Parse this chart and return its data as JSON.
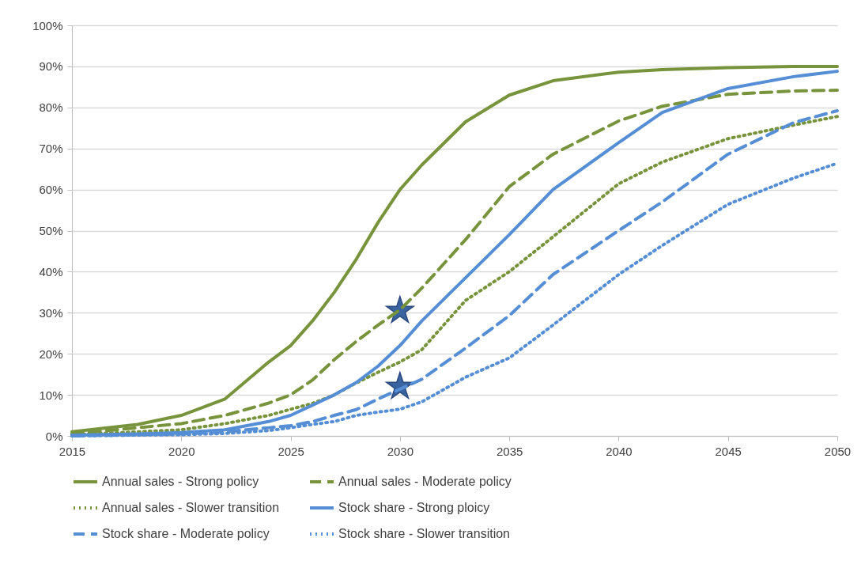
{
  "chart_data": {
    "type": "line",
    "grid": "y",
    "legend": "bottom",
    "xlim": [
      2015,
      2050
    ],
    "xticks": [
      2015,
      2020,
      2025,
      2030,
      2035,
      2040,
      2045,
      2050
    ],
    "ylim": [
      0,
      100
    ],
    "yticks": [
      {
        "value": 0,
        "label": "0%"
      },
      {
        "value": 10,
        "label": "10%"
      },
      {
        "value": 20,
        "label": "20%"
      },
      {
        "value": 30,
        "label": "30%"
      },
      {
        "value": 40,
        "label": "40%"
      },
      {
        "value": 50,
        "label": "50%"
      },
      {
        "value": 60,
        "label": "60%"
      },
      {
        "value": 70,
        "label": "70%"
      },
      {
        "value": 80,
        "label": "80%"
      },
      {
        "value": 90,
        "label": "90%"
      },
      {
        "value": 100,
        "label": "100%"
      }
    ],
    "x": [
      2015,
      2018,
      2020,
      2022,
      2024,
      2025,
      2026,
      2027,
      2028,
      2029,
      2030,
      2031,
      2033,
      2035,
      2037,
      2040,
      2042,
      2045,
      2048,
      2050
    ],
    "series": [
      {
        "name": "Annual sales - Strong policy",
        "color": "#77933c",
        "line_style": "solid",
        "values": [
          1,
          2.8,
          5,
          9,
          18,
          22,
          28,
          35,
          43,
          52,
          60,
          66,
          76.5,
          83,
          86.5,
          88.6,
          89.2,
          89.7,
          90,
          90
        ]
      },
      {
        "name": "Annual sales - Moderate policy",
        "color": "#77933c",
        "line_style": "dashed",
        "values": [
          0.5,
          2,
          3,
          5,
          8,
          10,
          13.6,
          18.6,
          23,
          27,
          30.7,
          36,
          47.8,
          60.7,
          68.6,
          76.7,
          80.3,
          83.2,
          84,
          84.2
        ]
      },
      {
        "name": "Annual sales - Slower transition",
        "color": "#77933c",
        "line_style": "dotted",
        "values": [
          0.3,
          1,
          1.5,
          3,
          5,
          6.5,
          7.9,
          10,
          12.9,
          15.5,
          18,
          21,
          33,
          40,
          48.5,
          61.4,
          66.7,
          72.4,
          75.7,
          77.8
        ]
      },
      {
        "name": "Stock share - Strong ploicy",
        "color": "#558ed5",
        "line_style": "solid",
        "values": [
          0.2,
          0.5,
          0.8,
          1.5,
          3.5,
          5,
          7.5,
          10,
          13,
          17,
          22,
          28,
          38.5,
          49,
          60,
          71.4,
          78.8,
          84.6,
          87.5,
          88.8
        ]
      },
      {
        "name": "Stock share - Moderate policy",
        "color": "#558ed5",
        "line_style": "dashed",
        "values": [
          0,
          0.3,
          0.5,
          1,
          2,
          2.5,
          3.5,
          5,
          6.4,
          9,
          11.4,
          13.8,
          21.4,
          29.3,
          39.3,
          50,
          57,
          68.6,
          76.3,
          79.2
        ]
      },
      {
        "name": "Stock share - Slower transition",
        "color": "#558ed5",
        "line_style": "dotted",
        "values": [
          0,
          0.2,
          0.3,
          0.6,
          1.3,
          2,
          2.8,
          3.5,
          5,
          5.8,
          6.5,
          8.3,
          14.3,
          19,
          27,
          39.3,
          46.4,
          56.4,
          62.8,
          66.4
        ]
      },
      {
        "type": "scatter",
        "marker": "star",
        "color": "#3a64a0",
        "x": [
          2030,
          2030
        ],
        "values": [
          30.5,
          12
        ]
      }
    ]
  }
}
